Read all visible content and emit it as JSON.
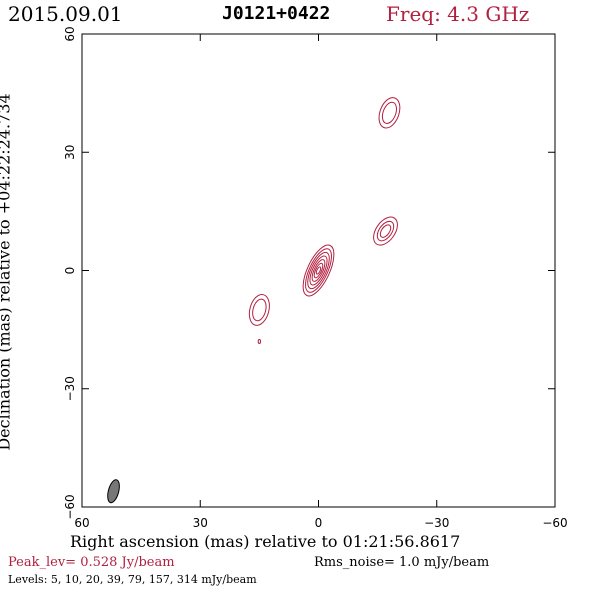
{
  "header": {
    "date": "2015.09.01",
    "source": "J0121+0422",
    "freq": "Freq: 4.3 GHz"
  },
  "footer": {
    "peak": "Peak_lev=  0.528 Jy/beam",
    "rms": "Rms_noise=  1.0 mJy/beam",
    "levels": "Levels:   5,  10,  20,  39,  79, 157, 314 mJy/beam"
  },
  "colors": {
    "contour": "#b22040",
    "beam": "#777777",
    "axis": "#000000"
  },
  "chart_data": {
    "type": "contour",
    "xlabel": "Right ascension (mas) relative to 01:21:56.8617",
    "ylabel": "Declination (mas) relative to +04:22:24.734",
    "xlim": [
      60,
      -60
    ],
    "ylim": [
      -60,
      60
    ],
    "x_ticks": [
      60,
      30,
      0,
      -30,
      -60
    ],
    "y_ticks": [
      60,
      30,
      0,
      -30,
      -60
    ],
    "x_tick_labels": [
      "60",
      "30",
      "0",
      "−30",
      "−60"
    ],
    "y_tick_labels": [
      "60",
      "30",
      "0",
      "−30",
      "−60"
    ],
    "contour_levels_mJy": [
      5,
      10,
      20,
      39,
      79,
      157,
      314
    ],
    "components": [
      {
        "x": 0,
        "y": 0,
        "peak_mJy": 528,
        "pa_deg": 25,
        "levels_drawn": 7
      },
      {
        "x": -17,
        "y": 10,
        "peak_mJy": 20,
        "pa_deg": 35,
        "levels_drawn": 3
      },
      {
        "x": -18,
        "y": 40,
        "peak_mJy": 10,
        "pa_deg": 20,
        "levels_drawn": 2
      },
      {
        "x": 15,
        "y": -10,
        "peak_mJy": 10,
        "pa_deg": 15,
        "levels_drawn": 2
      },
      {
        "x": 15,
        "y": -18,
        "peak_mJy": 5,
        "pa_deg": 0,
        "levels_drawn": 1
      }
    ],
    "beam": {
      "x": 52,
      "y": -56,
      "major_mas": 6,
      "minor_mas": 2,
      "pa_deg": 15
    }
  }
}
